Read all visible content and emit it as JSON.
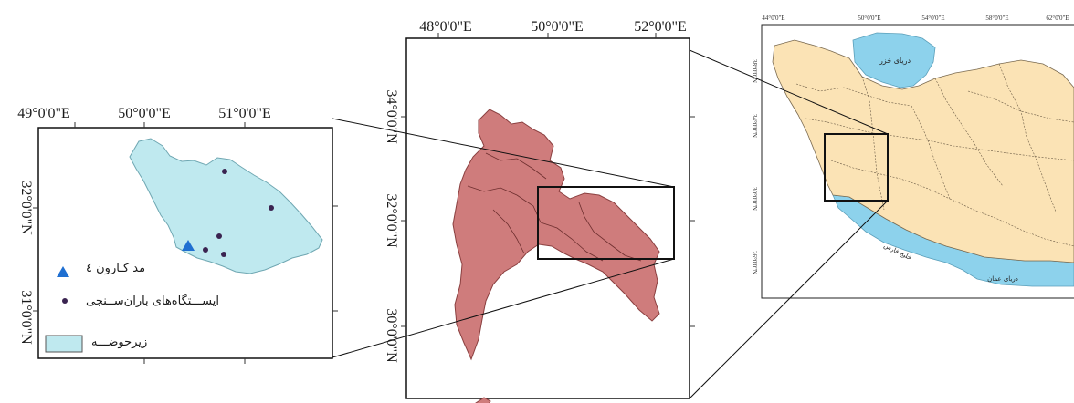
{
  "colors": {
    "subbasin_fill": "#bfe9ef",
    "basin_fill": "#cf7c7c",
    "iran_fill": "#fbe3b5",
    "water_fill": "#8dd2ec",
    "dam_marker": "#1f6fd1",
    "station_marker": "#3a2350"
  },
  "icons": {
    "dam": "triangle-icon",
    "station": "dot-icon",
    "subbasin": "rectangle-swatch-icon"
  },
  "map_left": {
    "lon_labels": [
      "49°0'0\"E",
      "50°0'0\"E",
      "51°0'0\"E"
    ],
    "lat_labels": [
      "32°0'0\"N",
      "31°0'0\"N"
    ],
    "legend": {
      "dam": "مد کـارون ٤",
      "stations": "ایســـتگاه‌های باران‌ســنجی",
      "subbasin": "زیرحوضـــه"
    }
  },
  "map_center": {
    "lon_labels": [
      "48°0'0\"E",
      "50°0'0\"E",
      "52°0'0\"E"
    ],
    "lat_labels": [
      "34°0'0\"N",
      "32°0'0\"N",
      "30°0'0\"N"
    ]
  },
  "map_right": {
    "lon_labels": [
      "44°0'0\"E",
      "50°0'0\"E",
      "54°0'0\"E",
      "58°0'0\"E",
      "62°0'0\"E"
    ],
    "lat_labels": [
      "38°0'0\"N",
      "34°0'0\"N",
      "30°0'0\"N",
      "26°0'0\"N"
    ],
    "water_labels": {
      "caspian": "دریای خزر",
      "gulf": "خلیج فارس",
      "oman": "دریای عمان"
    }
  }
}
